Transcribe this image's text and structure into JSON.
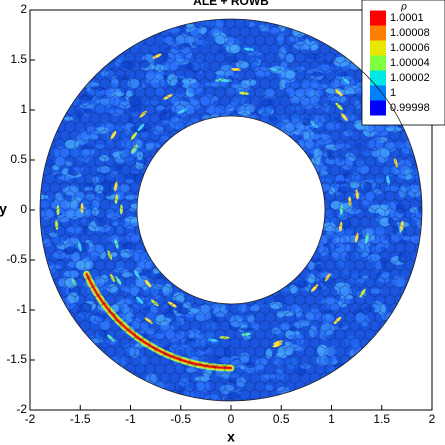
{
  "chart_data": {
    "type": "contour",
    "title": "ALE + ROWB",
    "xlabel": "x",
    "ylabel": "y",
    "xlim": [
      -2,
      2
    ],
    "ylim": [
      -2,
      2
    ],
    "xticks": [
      -2,
      -1.5,
      -1,
      -0.5,
      0,
      0.5,
      1,
      1.5,
      2
    ],
    "yticks": [
      -2,
      -1.5,
      -1,
      -0.5,
      0,
      0.5,
      1,
      1.5,
      2
    ],
    "colorbar": {
      "title": "ρ",
      "ticks": [
        1.0001,
        1.00008,
        1.00006,
        1.00004,
        1.00002,
        1,
        0.99998
      ],
      "colors": [
        "#ff0000",
        "#ff7f00",
        "#e8e800",
        "#7fff40",
        "#00e8e8",
        "#0080ff",
        "#0000ff"
      ]
    }
  }
}
